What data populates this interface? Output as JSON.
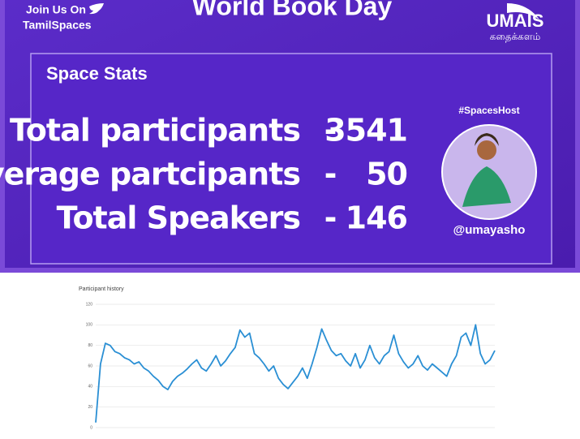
{
  "banner": {
    "title": "World Book Day",
    "join": "Join Us On",
    "handle": "TamilSpaces",
    "logo": "UMAIS",
    "logo_sub": "கதைக்களம்",
    "section": "Space Stats",
    "stats": [
      {
        "label": "Total participants",
        "sep": "-",
        "value": "3541"
      },
      {
        "label": "Average partcipants",
        "sep": "-",
        "value": "50"
      },
      {
        "label": "Total Speakers",
        "sep": "-",
        "value": "146"
      }
    ],
    "host_tag": "#SpacesHost",
    "host": "@umayasho"
  },
  "chart_data": {
    "type": "line",
    "title": "Participant history",
    "color": "#2a8fd4",
    "grid": true,
    "ylim": [
      0,
      120
    ],
    "yticks": [
      0,
      20,
      40,
      60,
      80,
      100,
      120
    ],
    "values": [
      5,
      62,
      82,
      80,
      74,
      72,
      68,
      66,
      62,
      64,
      58,
      55,
      50,
      46,
      40,
      37,
      45,
      50,
      53,
      57,
      62,
      66,
      58,
      55,
      62,
      70,
      60,
      65,
      72,
      78,
      95,
      88,
      92,
      72,
      68,
      62,
      55,
      60,
      48,
      42,
      38,
      44,
      50,
      58,
      48,
      62,
      78,
      96,
      85,
      75,
      70,
      72,
      65,
      60,
      72,
      58,
      66,
      80,
      68,
      62,
      70,
      74,
      90,
      72,
      64,
      58,
      62,
      70,
      60,
      56,
      62,
      58,
      54,
      50,
      62,
      70,
      88,
      92,
      80,
      100,
      72,
      62,
      66,
      75
    ]
  }
}
